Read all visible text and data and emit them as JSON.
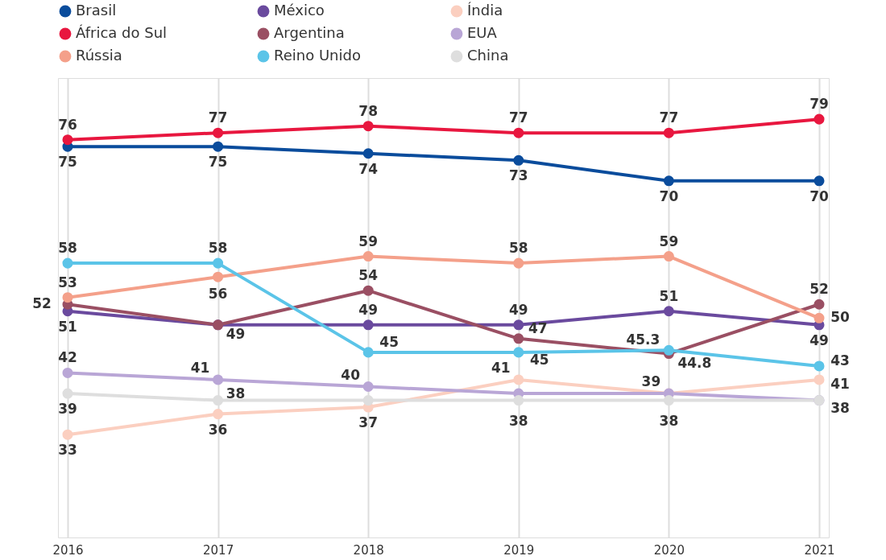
{
  "chart_data": {
    "type": "line",
    "categories": [
      "2016",
      "2017",
      "2018",
      "2019",
      "2020",
      "2021"
    ],
    "series": [
      {
        "name": "Brasil",
        "color": "#0a4c9c",
        "values": [
          75,
          75,
          74,
          73,
          70,
          70
        ],
        "value_labels": [
          "75",
          "75",
          "74",
          "73",
          "70",
          "70"
        ]
      },
      {
        "name": "México",
        "color": "#6a4a9e",
        "values": [
          51,
          49,
          49,
          49,
          51,
          49
        ],
        "value_labels": [
          "51",
          null,
          "49",
          "49",
          "51",
          "49"
        ]
      },
      {
        "name": "Índia",
        "color": "#fbcfc0",
        "values": [
          33,
          36,
          37,
          41,
          39,
          41
        ],
        "value_labels": [
          "33",
          "36",
          "37",
          "41",
          null,
          "41"
        ]
      },
      {
        "name": "África do Sul",
        "color": "#e8173f",
        "values": [
          76,
          77,
          78,
          77,
          77,
          79
        ],
        "value_labels": [
          "76",
          "77",
          "78",
          "77",
          "77",
          "79"
        ]
      },
      {
        "name": "Argentina",
        "color": "#9a4f63",
        "values": [
          52,
          49,
          54,
          47,
          44.8,
          52
        ],
        "value_labels": [
          "52",
          "49",
          "54",
          "47",
          "44.8",
          "52"
        ]
      },
      {
        "name": "EUA",
        "color": "#b9a6d6",
        "values": [
          42,
          41,
          40,
          39,
          39,
          38
        ],
        "value_labels": [
          "42",
          "41",
          "40",
          null,
          "39",
          "38"
        ]
      },
      {
        "name": "Rússia",
        "color": "#f4a08a",
        "values": [
          53,
          56,
          59,
          58,
          59,
          50
        ],
        "value_labels": [
          "53",
          "56",
          "59",
          "58",
          "59",
          "50"
        ]
      },
      {
        "name": "Reino Unido",
        "color": "#5bc4e8",
        "values": [
          58,
          58,
          45,
          45,
          45.3,
          43
        ],
        "value_labels": [
          "58",
          "58",
          "45",
          "45",
          "45.3",
          "43"
        ]
      },
      {
        "name": "China",
        "color": "#dedede",
        "values": [
          39,
          38,
          38,
          38,
          38,
          38
        ],
        "value_labels": [
          "39",
          "38",
          null,
          "38",
          "38",
          null
        ]
      }
    ],
    "ylim": [
      18,
      85
    ],
    "grid": "x",
    "legend": "top left",
    "tick_labels": "x",
    "marker": "circle",
    "line_style": "solid"
  }
}
